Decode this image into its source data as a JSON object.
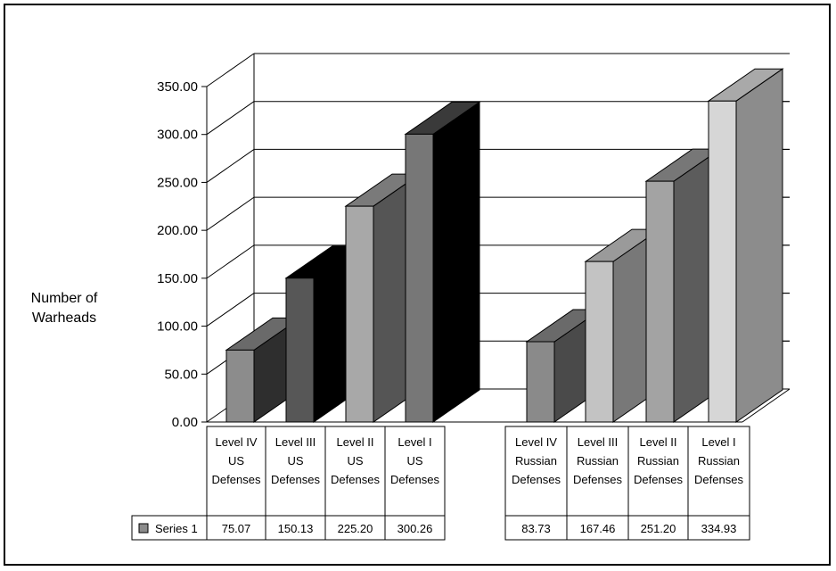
{
  "chart_data": {
    "type": "bar",
    "title": "",
    "ylabel": [
      "Number of",
      "Warheads"
    ],
    "ylim": [
      0,
      350
    ],
    "yticks": [
      "0.00",
      "50.00",
      "100.00",
      "150.00",
      "200.00",
      "250.00",
      "300.00",
      "350.00"
    ],
    "grid": true,
    "style": "3d-columns",
    "groups": [
      {
        "categories": [
          [
            "Level IV",
            "US",
            "Defenses"
          ],
          [
            "Level III",
            "US",
            "Defenses"
          ],
          [
            "Level II",
            "US",
            "Defenses"
          ],
          [
            "Level I",
            "US",
            "Defenses"
          ]
        ],
        "values": [
          75.07,
          150.13,
          225.2,
          300.26
        ],
        "value_labels": [
          "75.07",
          "150.13",
          "225.20",
          "300.26"
        ]
      },
      {
        "categories": [
          [
            "Level IV",
            "Russian",
            "Defenses"
          ],
          [
            "Level III",
            "Russian",
            "Defenses"
          ],
          [
            "Level II",
            "Russian",
            "Defenses"
          ],
          [
            "Level I",
            "Russian",
            "Defenses"
          ]
        ],
        "values": [
          83.73,
          167.46,
          251.2,
          334.93
        ],
        "value_labels": [
          "83.73",
          "167.46",
          "251.20",
          "334.93"
        ]
      }
    ],
    "series": [
      {
        "name": "Series 1"
      }
    ],
    "colors": {
      "us": [
        {
          "front": "#8c8c8c",
          "side": "#2e2e2e",
          "top": "#6a6a6a"
        },
        {
          "front": "#575757",
          "side": "#000000",
          "top": "#000000"
        },
        {
          "front": "#a8a8a8",
          "side": "#555555",
          "top": "#7a7a7a"
        },
        {
          "front": "#777777",
          "side": "#000000",
          "top": "#3a3a3a"
        }
      ],
      "ru": [
        {
          "front": "#8a8a8a",
          "side": "#4a4a4a",
          "top": "#6a6a6a"
        },
        {
          "front": "#c3c3c3",
          "side": "#787878",
          "top": "#9a9a9a"
        },
        {
          "front": "#a3a3a3",
          "side": "#5c5c5c",
          "top": "#777777"
        },
        {
          "front": "#d6d6d6",
          "side": "#8c8c8c",
          "top": "#a9a9a9"
        }
      ],
      "legend_swatch": "#8c8c8c"
    }
  }
}
